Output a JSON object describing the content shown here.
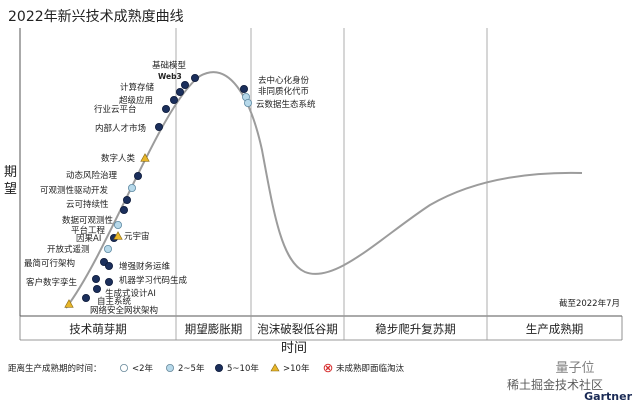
{
  "chart_data": {
    "type": "scatter",
    "title": "2022年新兴技术成熟度曲线",
    "xlabel": "时间",
    "ylabel": "期望",
    "as_of": "截至2022年7月",
    "phases": [
      "技术萌芽期",
      "期望膨胀期",
      "泡沫破裂低谷期",
      "稳步爬升复苏期",
      "生产成熟期"
    ],
    "legend": {
      "prefix": "距离生产成熟期的时间：",
      "items": [
        {
          "key": "lt2",
          "label": "<2年",
          "color": "#ffffff"
        },
        {
          "key": "2to5",
          "label": "2~5年",
          "color": "#b7d9ea"
        },
        {
          "key": "5to10",
          "label": "5~10年",
          "color": "#1b2f5c"
        },
        {
          "key": "gt10",
          "label": ">10年",
          "color": "#e8b62a"
        },
        {
          "key": "obsolete",
          "label": "未成熟即面临淘汰",
          "color": "#d62f2f"
        }
      ]
    },
    "technologies": [
      {
        "name": "基础模型",
        "cat": "5to10"
      },
      {
        "name": "Web3",
        "cat": "5to10"
      },
      {
        "name": "计算存储",
        "cat": "5to10"
      },
      {
        "name": "超级应用",
        "cat": "5to10"
      },
      {
        "name": "行业云平台",
        "cat": "5to10"
      },
      {
        "name": "内部人才市场",
        "cat": "5to10"
      },
      {
        "name": "数字人类",
        "cat": "gt10"
      },
      {
        "name": "动态风险治理",
        "cat": "5to10"
      },
      {
        "name": "可观测性驱动开发",
        "cat": "2to5"
      },
      {
        "name": "云可持续性",
        "cat": "5to10"
      },
      {
        "name": "数据可观测性",
        "cat": "5to10"
      },
      {
        "name": "平台工程",
        "cat": "2to5"
      },
      {
        "name": "因果AI",
        "cat": "5to10"
      },
      {
        "name": "元宇宙",
        "cat": "gt10"
      },
      {
        "name": "开放式遥测",
        "cat": "2to5"
      },
      {
        "name": "最简可行架构",
        "cat": "5to10"
      },
      {
        "name": "增强财务运维",
        "cat": "5to10"
      },
      {
        "name": "客户数字孪生",
        "cat": "5to10"
      },
      {
        "name": "机器学习代码生成",
        "cat": "5to10"
      },
      {
        "name": "生成式设计AI",
        "cat": "5to10"
      },
      {
        "name": "自主系统",
        "cat": "5to10"
      },
      {
        "name": "网络安全网状架构",
        "cat": "gt10"
      },
      {
        "name": "去中心化身份",
        "cat": "5to10"
      },
      {
        "name": "非同质化代币",
        "cat": "2to5"
      },
      {
        "name": "云数据生态系统",
        "cat": "2to5"
      }
    ]
  },
  "watermark": {
    "brand": "量子位",
    "site": "稀土掘金技术社区",
    "vendor": "Gartner"
  }
}
